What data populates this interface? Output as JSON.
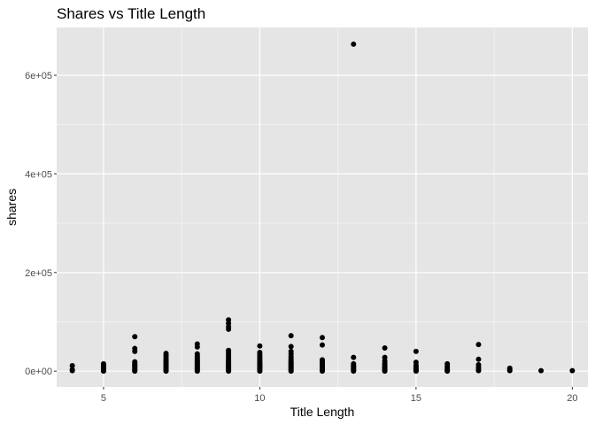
{
  "chart_data": {
    "type": "scatter",
    "title": "Shares vs Title Length",
    "xlabel": "Title Length",
    "ylabel": "shares",
    "xlim": [
      3.5,
      20.5
    ],
    "ylim": [
      -32000,
      697000
    ],
    "x_ticks": [
      5,
      10,
      15,
      20
    ],
    "x_tick_labels": [
      "5",
      "10",
      "15",
      "20"
    ],
    "y_ticks": [
      0,
      200000,
      400000,
      600000
    ],
    "y_tick_labels": [
      "0e+00",
      "2e+05",
      "4e+05",
      "6e+05"
    ],
    "grid": true,
    "panel_background": "#e5e5e5",
    "grid_color": "#ffffff",
    "point_color": "#000000",
    "points": [
      {
        "x": 4,
        "y": 1000
      },
      {
        "x": 4,
        "y": 3000
      },
      {
        "x": 4,
        "y": 11000
      },
      {
        "x": 5,
        "y": 0
      },
      {
        "x": 5,
        "y": 2000
      },
      {
        "x": 5,
        "y": 4000
      },
      {
        "x": 5,
        "y": 6000
      },
      {
        "x": 5,
        "y": 8000
      },
      {
        "x": 5,
        "y": 10000
      },
      {
        "x": 5,
        "y": 12000
      },
      {
        "x": 5,
        "y": 15000
      },
      {
        "x": 6,
        "y": 0
      },
      {
        "x": 6,
        "y": 2000
      },
      {
        "x": 6,
        "y": 4000
      },
      {
        "x": 6,
        "y": 6000
      },
      {
        "x": 6,
        "y": 8000
      },
      {
        "x": 6,
        "y": 10000
      },
      {
        "x": 6,
        "y": 12000
      },
      {
        "x": 6,
        "y": 14000
      },
      {
        "x": 6,
        "y": 16000
      },
      {
        "x": 6,
        "y": 19000
      },
      {
        "x": 6,
        "y": 40000
      },
      {
        "x": 6,
        "y": 46000
      },
      {
        "x": 6,
        "y": 70000
      },
      {
        "x": 7,
        "y": 0
      },
      {
        "x": 7,
        "y": 2000
      },
      {
        "x": 7,
        "y": 4000
      },
      {
        "x": 7,
        "y": 6000
      },
      {
        "x": 7,
        "y": 8000
      },
      {
        "x": 7,
        "y": 10000
      },
      {
        "x": 7,
        "y": 12000
      },
      {
        "x": 7,
        "y": 14000
      },
      {
        "x": 7,
        "y": 16000
      },
      {
        "x": 7,
        "y": 18000
      },
      {
        "x": 7,
        "y": 20000
      },
      {
        "x": 7,
        "y": 22000
      },
      {
        "x": 7,
        "y": 25000
      },
      {
        "x": 7,
        "y": 29000
      },
      {
        "x": 7,
        "y": 32000
      },
      {
        "x": 7,
        "y": 36000
      },
      {
        "x": 8,
        "y": 0
      },
      {
        "x": 8,
        "y": 2000
      },
      {
        "x": 8,
        "y": 4000
      },
      {
        "x": 8,
        "y": 6000
      },
      {
        "x": 8,
        "y": 8000
      },
      {
        "x": 8,
        "y": 10000
      },
      {
        "x": 8,
        "y": 12000
      },
      {
        "x": 8,
        "y": 14000
      },
      {
        "x": 8,
        "y": 16000
      },
      {
        "x": 8,
        "y": 18000
      },
      {
        "x": 8,
        "y": 20000
      },
      {
        "x": 8,
        "y": 22000
      },
      {
        "x": 8,
        "y": 25000
      },
      {
        "x": 8,
        "y": 28000
      },
      {
        "x": 8,
        "y": 31000
      },
      {
        "x": 8,
        "y": 35000
      },
      {
        "x": 8,
        "y": 49000
      },
      {
        "x": 8,
        "y": 55000
      },
      {
        "x": 9,
        "y": 0
      },
      {
        "x": 9,
        "y": 2000
      },
      {
        "x": 9,
        "y": 4000
      },
      {
        "x": 9,
        "y": 6000
      },
      {
        "x": 9,
        "y": 8000
      },
      {
        "x": 9,
        "y": 10000
      },
      {
        "x": 9,
        "y": 12000
      },
      {
        "x": 9,
        "y": 14000
      },
      {
        "x": 9,
        "y": 16000
      },
      {
        "x": 9,
        "y": 18000
      },
      {
        "x": 9,
        "y": 20000
      },
      {
        "x": 9,
        "y": 23000
      },
      {
        "x": 9,
        "y": 26000
      },
      {
        "x": 9,
        "y": 30000
      },
      {
        "x": 9,
        "y": 34000
      },
      {
        "x": 9,
        "y": 38000
      },
      {
        "x": 9,
        "y": 42000
      },
      {
        "x": 9,
        "y": 85000
      },
      {
        "x": 9,
        "y": 90000
      },
      {
        "x": 9,
        "y": 97000
      },
      {
        "x": 9,
        "y": 104000
      },
      {
        "x": 10,
        "y": 0
      },
      {
        "x": 10,
        "y": 2000
      },
      {
        "x": 10,
        "y": 4000
      },
      {
        "x": 10,
        "y": 6000
      },
      {
        "x": 10,
        "y": 8000
      },
      {
        "x": 10,
        "y": 10000
      },
      {
        "x": 10,
        "y": 12000
      },
      {
        "x": 10,
        "y": 14000
      },
      {
        "x": 10,
        "y": 16000
      },
      {
        "x": 10,
        "y": 18000
      },
      {
        "x": 10,
        "y": 21000
      },
      {
        "x": 10,
        "y": 24000
      },
      {
        "x": 10,
        "y": 27000
      },
      {
        "x": 10,
        "y": 30000
      },
      {
        "x": 10,
        "y": 34000
      },
      {
        "x": 10,
        "y": 38000
      },
      {
        "x": 10,
        "y": 51000
      },
      {
        "x": 11,
        "y": 0
      },
      {
        "x": 11,
        "y": 2000
      },
      {
        "x": 11,
        "y": 4000
      },
      {
        "x": 11,
        "y": 6000
      },
      {
        "x": 11,
        "y": 8000
      },
      {
        "x": 11,
        "y": 10000
      },
      {
        "x": 11,
        "y": 12000
      },
      {
        "x": 11,
        "y": 14000
      },
      {
        "x": 11,
        "y": 16000
      },
      {
        "x": 11,
        "y": 18000
      },
      {
        "x": 11,
        "y": 20000
      },
      {
        "x": 11,
        "y": 23000
      },
      {
        "x": 11,
        "y": 26000
      },
      {
        "x": 11,
        "y": 30000
      },
      {
        "x": 11,
        "y": 35000
      },
      {
        "x": 11,
        "y": 40000
      },
      {
        "x": 11,
        "y": 50000
      },
      {
        "x": 11,
        "y": 72000
      },
      {
        "x": 12,
        "y": 0
      },
      {
        "x": 12,
        "y": 2000
      },
      {
        "x": 12,
        "y": 4000
      },
      {
        "x": 12,
        "y": 6000
      },
      {
        "x": 12,
        "y": 8000
      },
      {
        "x": 12,
        "y": 10000
      },
      {
        "x": 12,
        "y": 12000
      },
      {
        "x": 12,
        "y": 14000
      },
      {
        "x": 12,
        "y": 17000
      },
      {
        "x": 12,
        "y": 20000
      },
      {
        "x": 12,
        "y": 23000
      },
      {
        "x": 12,
        "y": 53000
      },
      {
        "x": 12,
        "y": 68000
      },
      {
        "x": 13,
        "y": 0
      },
      {
        "x": 13,
        "y": 2000
      },
      {
        "x": 13,
        "y": 4000
      },
      {
        "x": 13,
        "y": 6000
      },
      {
        "x": 13,
        "y": 8000
      },
      {
        "x": 13,
        "y": 10000
      },
      {
        "x": 13,
        "y": 12000
      },
      {
        "x": 13,
        "y": 15000
      },
      {
        "x": 13,
        "y": 28000
      },
      {
        "x": 13,
        "y": 663000
      },
      {
        "x": 14,
        "y": 0
      },
      {
        "x": 14,
        "y": 2000
      },
      {
        "x": 14,
        "y": 4000
      },
      {
        "x": 14,
        "y": 6000
      },
      {
        "x": 14,
        "y": 8000
      },
      {
        "x": 14,
        "y": 10000
      },
      {
        "x": 14,
        "y": 13000
      },
      {
        "x": 14,
        "y": 16000
      },
      {
        "x": 14,
        "y": 21000
      },
      {
        "x": 14,
        "y": 28000
      },
      {
        "x": 14,
        "y": 47000
      },
      {
        "x": 15,
        "y": 0
      },
      {
        "x": 15,
        "y": 2000
      },
      {
        "x": 15,
        "y": 4000
      },
      {
        "x": 15,
        "y": 6000
      },
      {
        "x": 15,
        "y": 9000
      },
      {
        "x": 15,
        "y": 12000
      },
      {
        "x": 15,
        "y": 18000
      },
      {
        "x": 15,
        "y": 40000
      },
      {
        "x": 16,
        "y": 0
      },
      {
        "x": 16,
        "y": 2000
      },
      {
        "x": 16,
        "y": 4000
      },
      {
        "x": 16,
        "y": 7000
      },
      {
        "x": 16,
        "y": 10000
      },
      {
        "x": 16,
        "y": 15000
      },
      {
        "x": 17,
        "y": 1000
      },
      {
        "x": 17,
        "y": 4000
      },
      {
        "x": 17,
        "y": 8000
      },
      {
        "x": 17,
        "y": 13000
      },
      {
        "x": 17,
        "y": 24000
      },
      {
        "x": 17,
        "y": 54000
      },
      {
        "x": 18,
        "y": 1000
      },
      {
        "x": 18,
        "y": 3000
      },
      {
        "x": 18,
        "y": 6000
      },
      {
        "x": 19,
        "y": 1000
      },
      {
        "x": 20,
        "y": 1000
      }
    ]
  }
}
